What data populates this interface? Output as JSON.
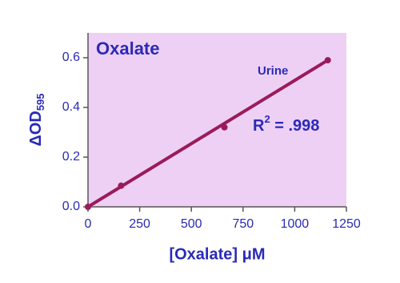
{
  "chart_data": {
    "type": "scatter",
    "title": "Oxalate",
    "x_label": "[Oxalate] μM",
    "y_label": {
      "main": "ΔOD",
      "sub": "595"
    },
    "annotation": {
      "base": "R",
      "sup": "2",
      "rest": " = .998"
    },
    "series": [
      {
        "name": "Urine",
        "color": "#9b1b5a",
        "x": [
          0,
          160,
          660,
          1160
        ],
        "values": [
          0,
          0.085,
          0.32,
          0.59
        ]
      }
    ],
    "fit": {
      "color": "#9b1b5a",
      "x": [
        0,
        1160
      ],
      "values": [
        0,
        0.59
      ]
    },
    "xlim": [
      0,
      1250
    ],
    "xticks": [
      0,
      250,
      500,
      750,
      1000,
      1250
    ],
    "ylim": [
      0,
      0.7
    ],
    "yticks": [
      {
        "value": 0,
        "label": "0.0"
      },
      0.2,
      0.4,
      0.6
    ],
    "background": "#efd0f5",
    "text_color": "#2a2ab8"
  }
}
